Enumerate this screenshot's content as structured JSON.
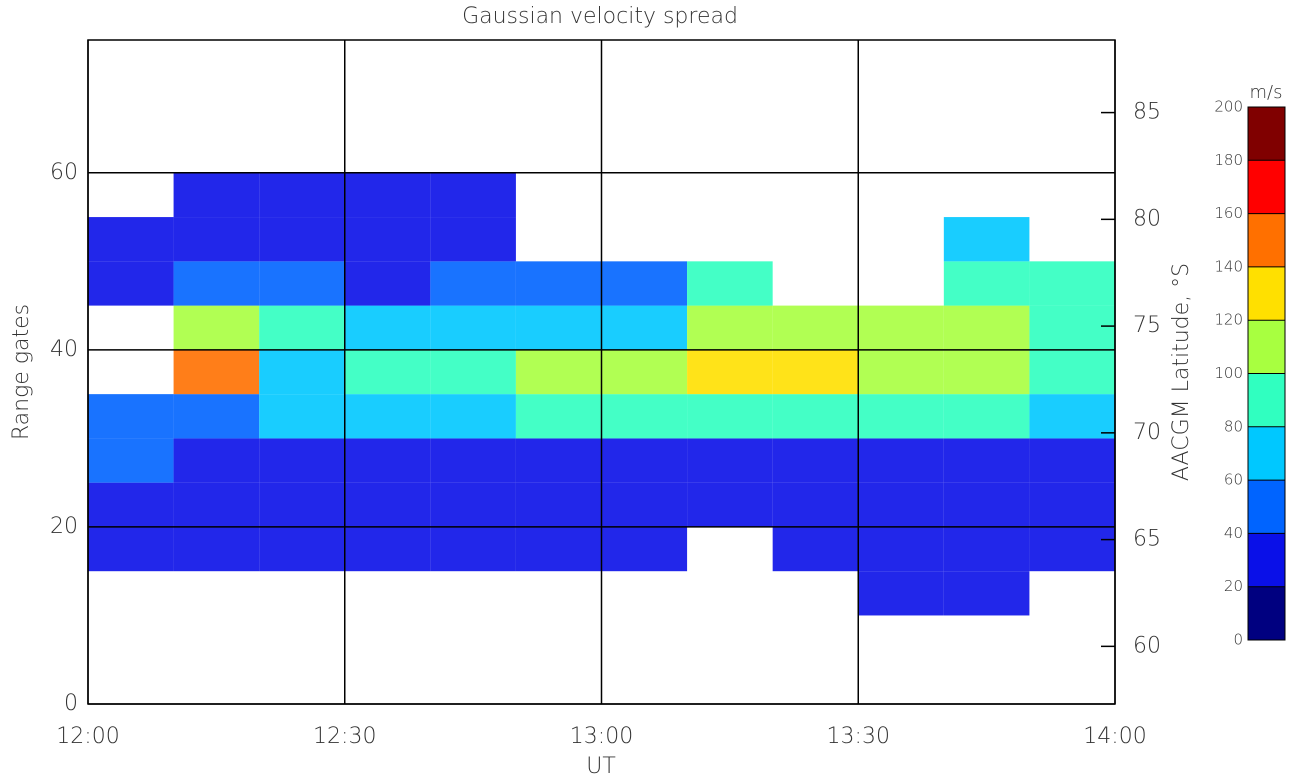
{
  "chart_data": {
    "type": "heatmap",
    "title": "Gaussian velocity spread",
    "x_label": "UT",
    "y_label": "Range gates",
    "y2_label": "AACGM Latitude, °S",
    "x": [
      "12:00",
      "12:10",
      "12:20",
      "12:30",
      "12:40",
      "12:50",
      "13:00",
      "13:10",
      "13:20",
      "13:30",
      "13:40",
      "13:50"
    ],
    "xlim": [
      "12:00",
      "14:00"
    ],
    "xticks": [
      "12:00",
      "12:30",
      "13:00",
      "13:30",
      "14:00"
    ],
    "y": [
      0,
      5,
      10,
      15,
      20,
      25,
      30,
      35,
      40,
      45,
      50,
      55,
      60,
      65,
      70
    ],
    "ylim": [
      0,
      75
    ],
    "yticks": [
      0,
      20,
      40,
      60
    ],
    "y2lim": [
      57.3,
      88.4
    ],
    "y2ticks": [
      60,
      65,
      70,
      75,
      80,
      85
    ],
    "z": [
      [
        null,
        null,
        null,
        null,
        null,
        null,
        null,
        null,
        null,
        null,
        null,
        null
      ],
      [
        null,
        null,
        null,
        null,
        null,
        null,
        null,
        null,
        null,
        null,
        null,
        null
      ],
      [
        null,
        null,
        null,
        null,
        null,
        null,
        null,
        null,
        null,
        30,
        30,
        null
      ],
      [
        30,
        30,
        30,
        30,
        30,
        30,
        30,
        null,
        30,
        20,
        25,
        25
      ],
      [
        25,
        25,
        25,
        25,
        25,
        25,
        25,
        25,
        25,
        25,
        25,
        25
      ],
      [
        40,
        30,
        30,
        30,
        30,
        30,
        30,
        30,
        30,
        30,
        30,
        30
      ],
      [
        50,
        50,
        60,
        60,
        70,
        80,
        90,
        90,
        80,
        80,
        80,
        70
      ],
      [
        null,
        150,
        60,
        80,
        90,
        100,
        110,
        120,
        120,
        110,
        100,
        90
      ],
      [
        null,
        110,
        80,
        70,
        60,
        70,
        70,
        100,
        110,
        110,
        100,
        90
      ],
      [
        30,
        40,
        40,
        35,
        40,
        45,
        50,
        80,
        null,
        null,
        80,
        90
      ],
      [
        35,
        30,
        35,
        30,
        35,
        null,
        null,
        null,
        null,
        null,
        60,
        null
      ],
      [
        null,
        30,
        30,
        30,
        30,
        null,
        null,
        null,
        null,
        null,
        null,
        null
      ],
      [
        null,
        null,
        null,
        null,
        null,
        null,
        null,
        null,
        null,
        null,
        null,
        null
      ],
      [
        null,
        null,
        null,
        null,
        null,
        null,
        null,
        null,
        null,
        null,
        null,
        null
      ],
      [
        null,
        null,
        null,
        null,
        null,
        null,
        null,
        null,
        null,
        null,
        null,
        null
      ]
    ],
    "grid": true,
    "colorbar": {
      "label": "m/s",
      "ticks": [
        0,
        20,
        40,
        60,
        80,
        100,
        120,
        140,
        160,
        180,
        200
      ],
      "colors": [
        "#000080",
        "#0a10e8",
        "#0064ff",
        "#00c8ff",
        "#30ffc0",
        "#a8ff40",
        "#ffe000",
        "#ff7000",
        "#ff0000",
        "#800000"
      ]
    }
  }
}
